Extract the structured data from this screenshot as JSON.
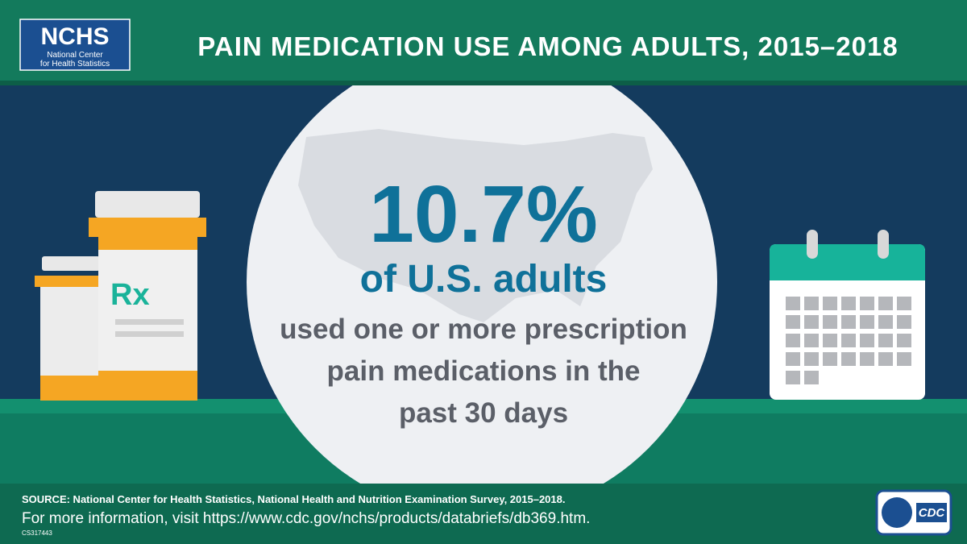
{
  "header": {
    "logo": {
      "acronym": "NCHS",
      "line1": "National Center",
      "line2": "for Health Statistics"
    },
    "title": "PAIN MEDICATION USE AMONG ADULTS, 2015–2018"
  },
  "illustration": {
    "rx": "Rx"
  },
  "headline": {
    "stat": "10.7%",
    "subject": "of U.S. adults",
    "lines": [
      "used one or more prescription",
      "pain medications in the",
      "past 30 days"
    ]
  },
  "footer": {
    "source": "SOURCE: National Center for Health Statistics, National Health and Nutrition Examination Survey, 2015–2018.",
    "more_info": "For more information, visit https://www.cdc.gov/nchs/products/databriefs/db369.htm.",
    "code": "CS317443",
    "cdc_logo": "CDC"
  }
}
